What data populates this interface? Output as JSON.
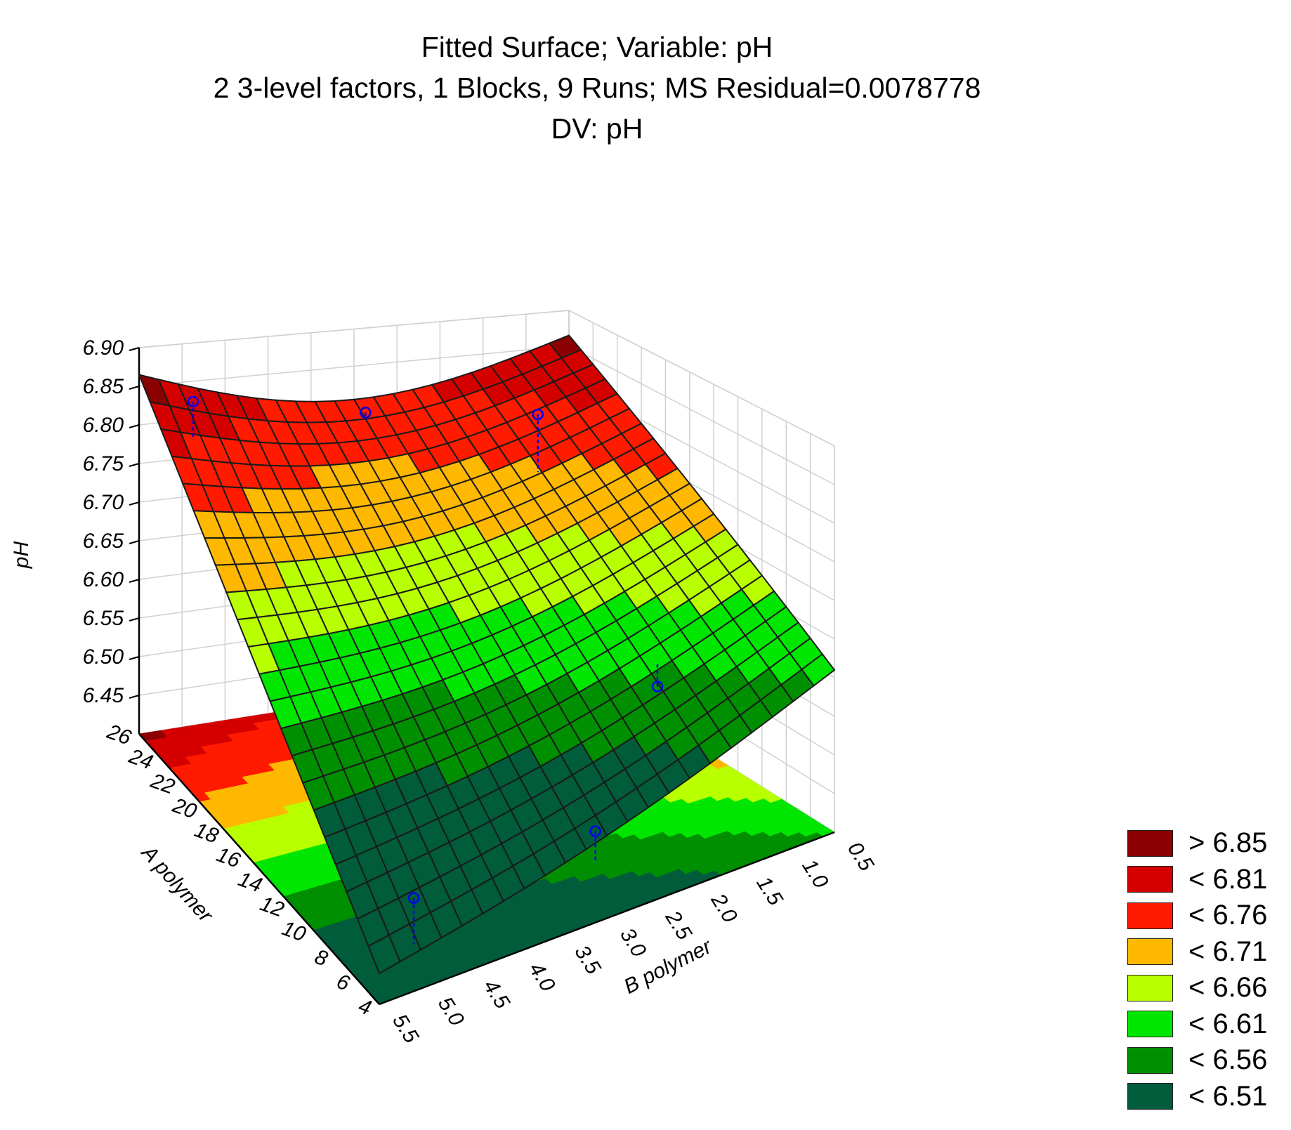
{
  "chart_data": {
    "type": "surface3d",
    "title": "Fitted Surface; Variable: pH",
    "subtitle_lines": [
      "2 3-level factors, 1 Blocks, 9 Runs; MS Residual=0.0078778",
      "DV: pH"
    ],
    "x_axis": {
      "label": "A polymer",
      "range": [
        4,
        26
      ],
      "ticks": [
        "4",
        "6",
        "8",
        "10",
        "12",
        "14",
        "16",
        "18",
        "20",
        "22",
        "24",
        "26"
      ]
    },
    "y_axis": {
      "label": "B polymer",
      "range": [
        0.5,
        5.5
      ],
      "ticks": [
        "0.5",
        "1.0",
        "1.5",
        "2.0",
        "2.5",
        "3.0",
        "3.5",
        "4.0",
        "4.5",
        "5.0",
        "5.5"
      ]
    },
    "z_axis": {
      "label": "pH",
      "range": [
        6.4,
        6.9
      ],
      "ticks": [
        "6.45",
        "6.50",
        "6.55",
        "6.60",
        "6.65",
        "6.70",
        "6.75",
        "6.80",
        "6.85",
        "6.90"
      ]
    },
    "fitted_corners": {
      "A26_B5.5": 6.865,
      "A26_B0.5": 6.865,
      "A4_B0.5": 6.61,
      "A4_B5.5": 6.44
    },
    "runs": [
      {
        "a": 25,
        "b": 5.0,
        "ph": 6.84,
        "fitted": 6.79
      },
      {
        "a": 25,
        "b": 3.0,
        "ph": 6.8,
        "fitted": 6.79
      },
      {
        "a": 25,
        "b": 1.0,
        "ph": 6.77,
        "fitted": 6.69
      },
      {
        "a": 15,
        "b": 1.0,
        "ph": 6.5,
        "fitted": 6.53
      },
      {
        "a": 5,
        "b": 3.0,
        "ph": 6.5,
        "fitted": 6.46
      },
      {
        "a": 5,
        "b": 5.0,
        "ph": 6.5,
        "fitted": 6.44
      }
    ],
    "grid": true,
    "legend": {
      "position": "bottom-right",
      "items": [
        {
          "label": "> 6.85",
          "color": "#8b0000"
        },
        {
          "label": "< 6.81",
          "color": "#d40000"
        },
        {
          "label": "< 6.76",
          "color": "#ff1a00"
        },
        {
          "label": "< 6.71",
          "color": "#ffb800"
        },
        {
          "label": "< 6.66",
          "color": "#b8ff00"
        },
        {
          "label": "< 6.61",
          "color": "#00e600"
        },
        {
          "label": "< 6.56",
          "color": "#008f00"
        },
        {
          "label": "< 6.51",
          "color": "#005c3a"
        }
      ]
    },
    "point_color": "#0000ee"
  }
}
